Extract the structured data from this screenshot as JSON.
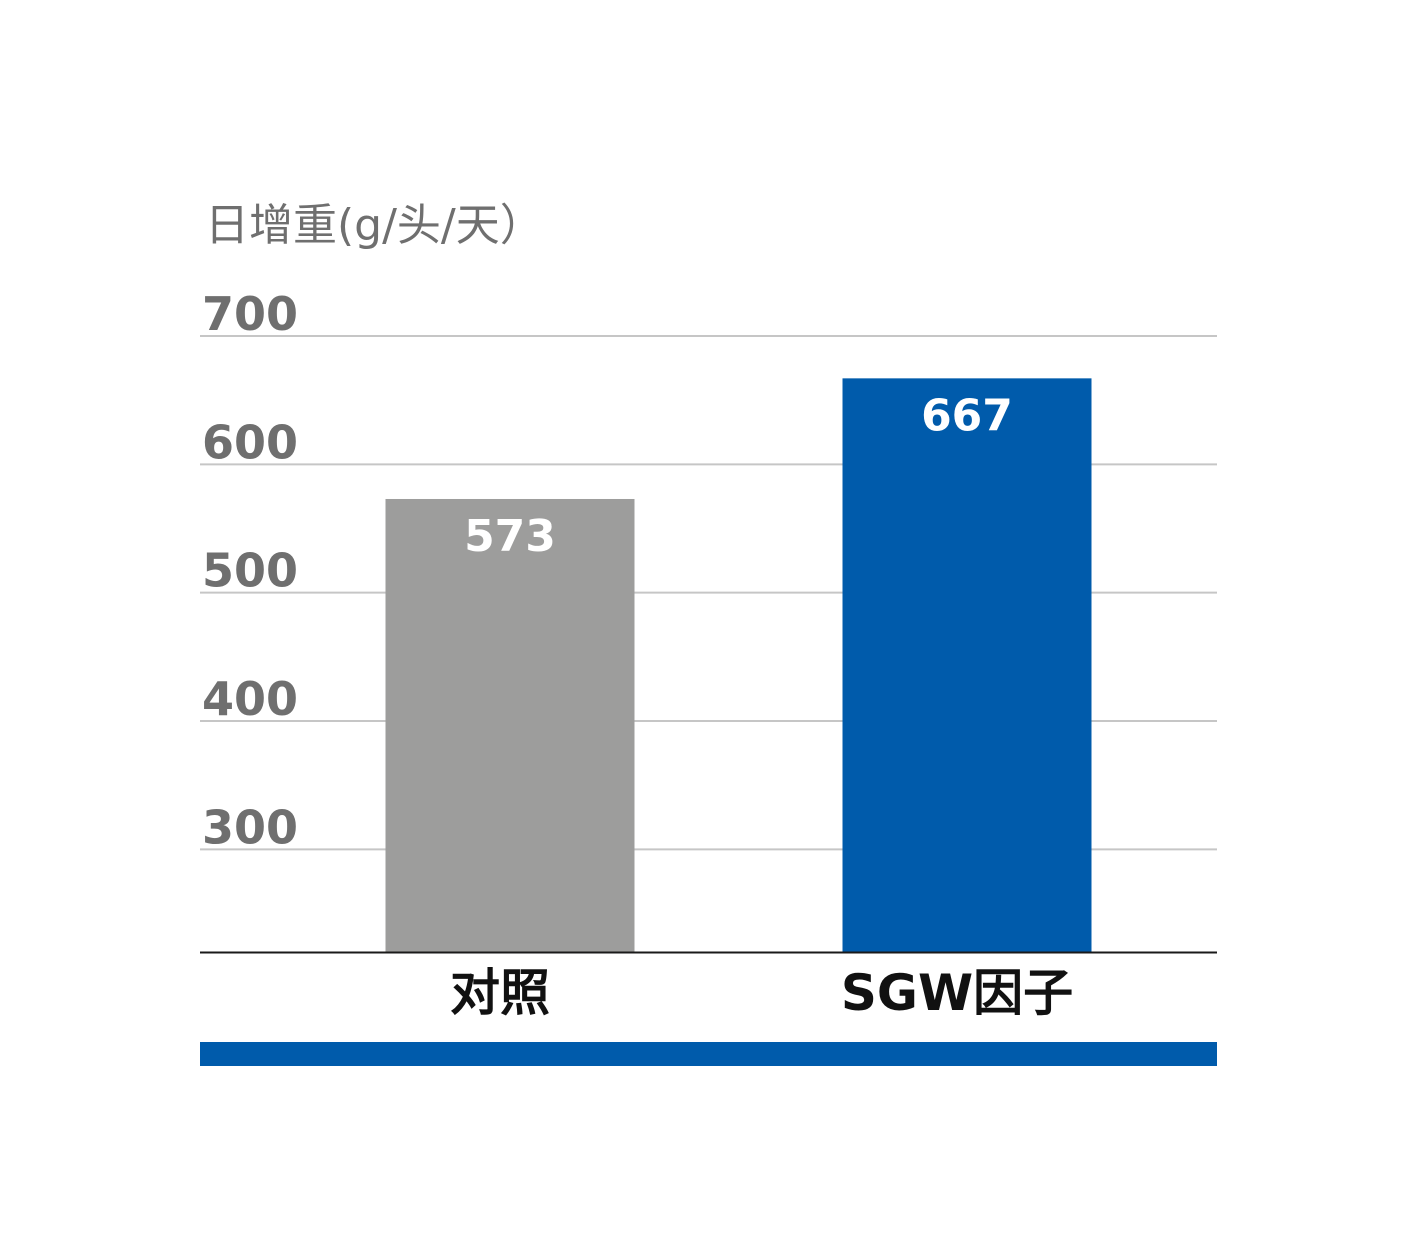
{
  "chart_data": {
    "type": "bar",
    "title": "",
    "ylabel": "日增重(g/头/天）",
    "xlabel": "",
    "categories": [
      "对照",
      "SGW因子"
    ],
    "values": [
      573,
      667
    ],
    "data_labels": [
      "573",
      "667"
    ],
    "yticks": [
      300,
      400,
      500,
      600,
      700
    ],
    "ytick_labels": [
      "300",
      "400",
      "500",
      "600",
      "700"
    ],
    "ylim": [
      220,
      700
    ],
    "grid": true,
    "legend": "none",
    "colors": {
      "bars": [
        "#9d9d9c",
        "#005bab"
      ],
      "grid": "#c6c6c6",
      "axis": "#1a1a1a",
      "footer_band": "#005bab",
      "tick_text": "#6f6f6f"
    }
  }
}
